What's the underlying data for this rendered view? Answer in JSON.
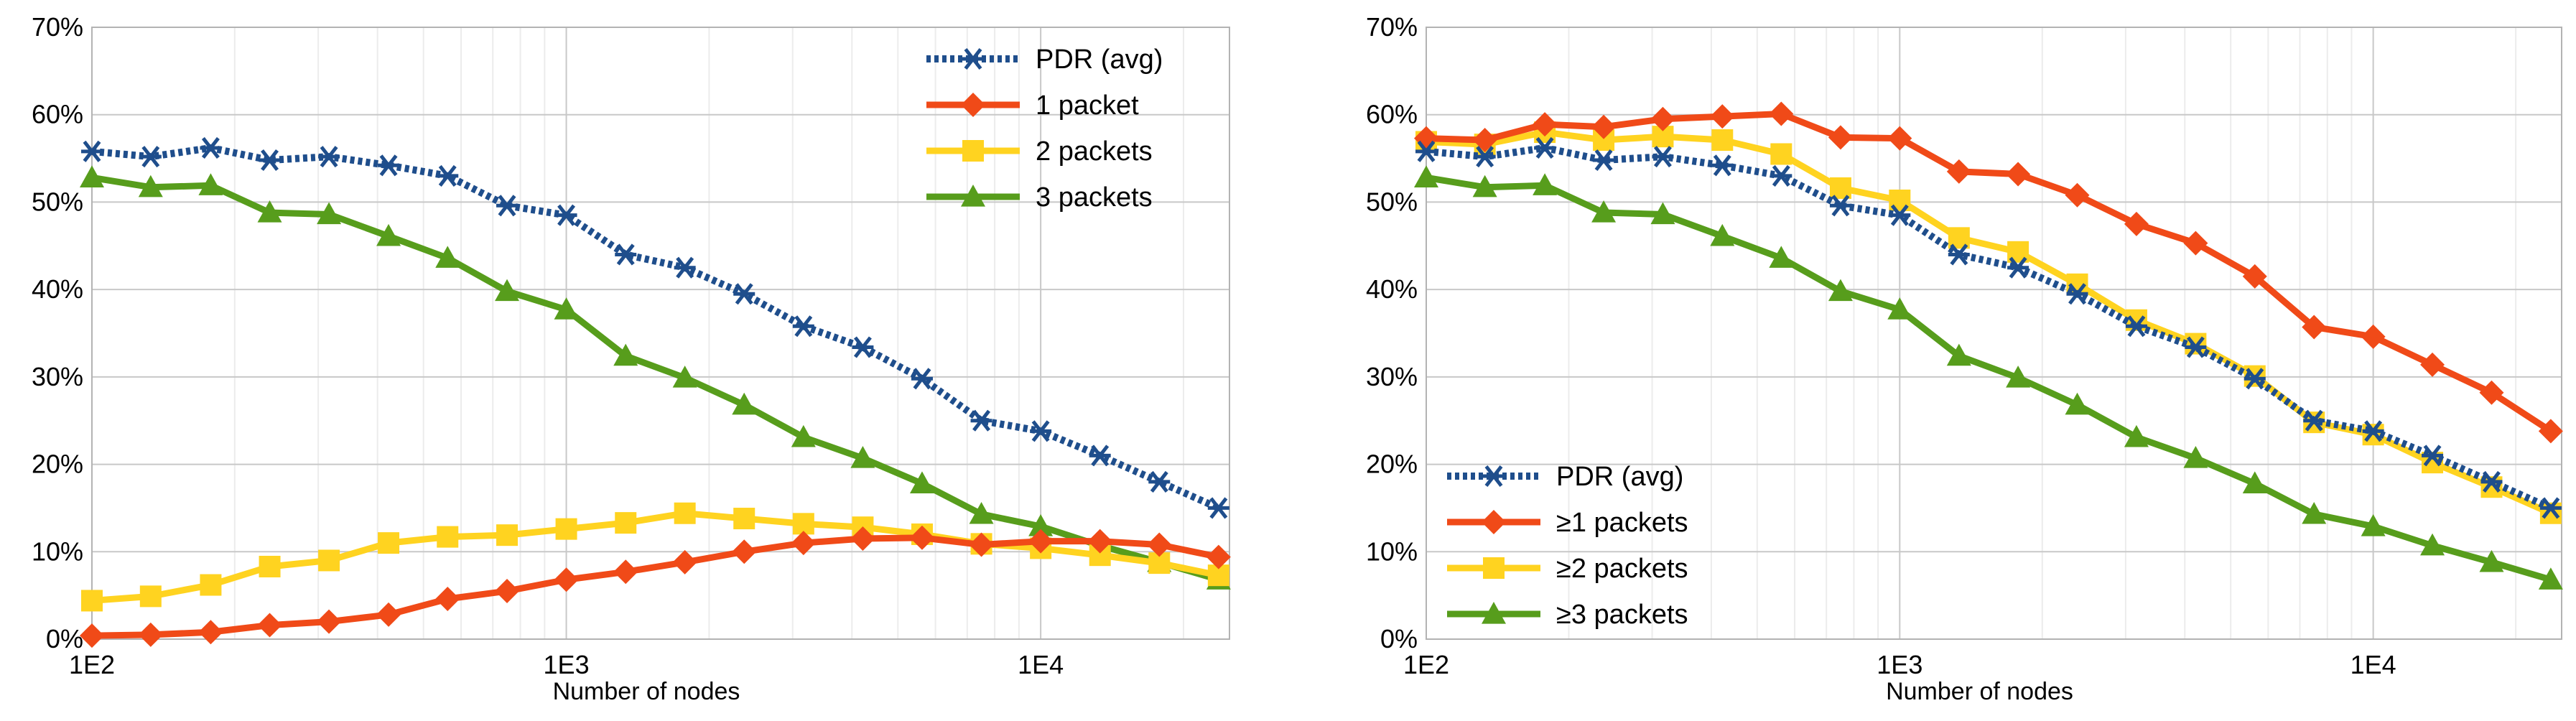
{
  "chart_data": [
    {
      "type": "line",
      "title": "",
      "xlabel": "Number of nodes",
      "ylabel": "",
      "x_scale": "log",
      "xlim": [
        100,
        25000
      ],
      "ylim": [
        0,
        70
      ],
      "x_ticks": [
        "1E2",
        "1E3",
        "1E4"
      ],
      "y_ticks": [
        "0%",
        "10%",
        "20%",
        "30%",
        "40%",
        "50%",
        "60%",
        "70%"
      ],
      "legend_position": "top-right",
      "x": [
        100,
        133,
        178,
        237,
        316,
        422,
        562,
        750,
        1000,
        1334,
        1778,
        2371,
        3162,
        4217,
        5623,
        7499,
        10000,
        13335,
        17783,
        23714
      ],
      "series": [
        {
          "name": "PDR (avg)",
          "color": "#1f4e8c",
          "marker": "star",
          "dashed": true,
          "values": [
            55.8,
            55.2,
            56.2,
            54.8,
            55.2,
            54.2,
            53.0,
            49.6,
            48.5,
            44.0,
            42.5,
            39.5,
            35.8,
            33.4,
            29.8,
            25.0,
            23.8,
            21.0,
            18.0,
            15.0
          ]
        },
        {
          "name": "1 packet",
          "color": "#f04a18",
          "marker": "diamond",
          "dashed": false,
          "values": [
            0.4,
            0.5,
            0.8,
            1.6,
            2.0,
            2.8,
            4.6,
            5.5,
            6.8,
            7.7,
            8.8,
            10.0,
            11.0,
            11.5,
            11.6,
            10.8,
            11.2,
            11.2,
            10.8,
            9.4
          ]
        },
        {
          "name": "2 packets",
          "color": "#ffd320",
          "marker": "square",
          "dashed": false,
          "values": [
            4.4,
            4.9,
            6.2,
            8.3,
            9.0,
            11.0,
            11.7,
            11.9,
            12.6,
            13.3,
            14.4,
            13.8,
            13.2,
            12.8,
            12.0,
            10.9,
            10.4,
            9.6,
            8.7,
            7.3
          ]
        },
        {
          "name": "3 packets",
          "color": "#579d1c",
          "marker": "triangle",
          "dashed": false,
          "values": [
            52.8,
            51.7,
            51.9,
            48.8,
            48.6,
            46.1,
            43.6,
            39.8,
            37.7,
            32.4,
            29.9,
            26.8,
            23.1,
            20.7,
            17.8,
            14.3,
            12.9,
            10.7,
            8.8,
            6.8
          ]
        }
      ]
    },
    {
      "type": "line",
      "title": "",
      "xlabel": "Number of nodes",
      "ylabel": "",
      "x_scale": "log",
      "xlim": [
        100,
        25000
      ],
      "ylim": [
        0,
        70
      ],
      "x_ticks": [
        "1E2",
        "1E3",
        "1E4"
      ],
      "y_ticks": [
        "0%",
        "10%",
        "20%",
        "30%",
        "40%",
        "50%",
        "60%",
        "70%"
      ],
      "legend_position": "bottom-left",
      "x": [
        100,
        133,
        178,
        237,
        316,
        422,
        562,
        750,
        1000,
        1334,
        1778,
        2371,
        3162,
        4217,
        5623,
        7499,
        10000,
        13335,
        17783,
        23714
      ],
      "series": [
        {
          "name": "PDR (avg)",
          "color": "#1f4e8c",
          "marker": "star",
          "dashed": true,
          "values": [
            55.8,
            55.2,
            56.2,
            54.8,
            55.2,
            54.2,
            53.0,
            49.6,
            48.5,
            44.0,
            42.5,
            39.5,
            35.8,
            33.4,
            29.8,
            25.0,
            23.8,
            21.0,
            18.0,
            15.0
          ]
        },
        {
          "name": "≥1 packets",
          "color": "#f04a18",
          "marker": "diamond",
          "dashed": false,
          "values": [
            57.3,
            57.1,
            58.9,
            58.6,
            59.5,
            59.8,
            60.1,
            57.4,
            57.3,
            53.5,
            53.2,
            50.8,
            47.5,
            45.3,
            41.5,
            35.7,
            34.6,
            31.4,
            28.2,
            23.8
          ]
        },
        {
          "name": "≥2 packets",
          "color": "#ffd320",
          "marker": "square",
          "dashed": false,
          "values": [
            56.9,
            56.6,
            58.0,
            57.1,
            57.5,
            57.1,
            55.5,
            51.6,
            50.2,
            45.9,
            44.3,
            40.6,
            36.5,
            33.8,
            30.1,
            24.8,
            23.4,
            20.2,
            17.4,
            14.4
          ]
        },
        {
          "name": "≥3 packets",
          "color": "#579d1c",
          "marker": "triangle",
          "dashed": false,
          "values": [
            52.8,
            51.7,
            51.9,
            48.8,
            48.6,
            46.1,
            43.6,
            39.8,
            37.7,
            32.4,
            29.9,
            26.8,
            23.1,
            20.7,
            17.8,
            14.3,
            12.9,
            10.7,
            8.8,
            6.8
          ]
        }
      ]
    }
  ]
}
